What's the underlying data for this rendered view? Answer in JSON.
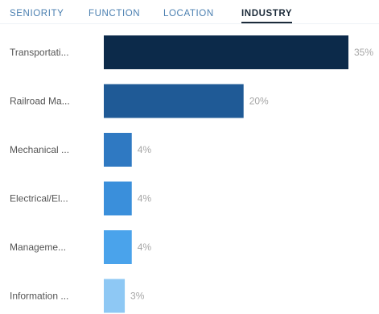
{
  "tabs": [
    {
      "label": "SENIORITY",
      "active": false
    },
    {
      "label": "FUNCTION",
      "active": false
    },
    {
      "label": "LOCATION",
      "active": false
    },
    {
      "label": "INDUSTRY",
      "active": true
    }
  ],
  "chart_data": {
    "type": "bar",
    "orientation": "horizontal",
    "categories": [
      "Transportati...",
      "Railroad Ma...",
      "Mechanical ...",
      "Electrical/El...",
      "Manageme...",
      "Information ..."
    ],
    "values": [
      35,
      20,
      4,
      4,
      4,
      3
    ],
    "value_labels": [
      "35%",
      "20%",
      "4%",
      "4%",
      "4%",
      "3%"
    ],
    "colors": [
      "#0c2a4a",
      "#1f5a96",
      "#2f79c2",
      "#3a8fdb",
      "#4aa3eb",
      "#8ec8f4"
    ],
    "xlim": [
      0,
      35
    ],
    "grid": false,
    "title": "",
    "xlabel": "",
    "ylabel": ""
  }
}
